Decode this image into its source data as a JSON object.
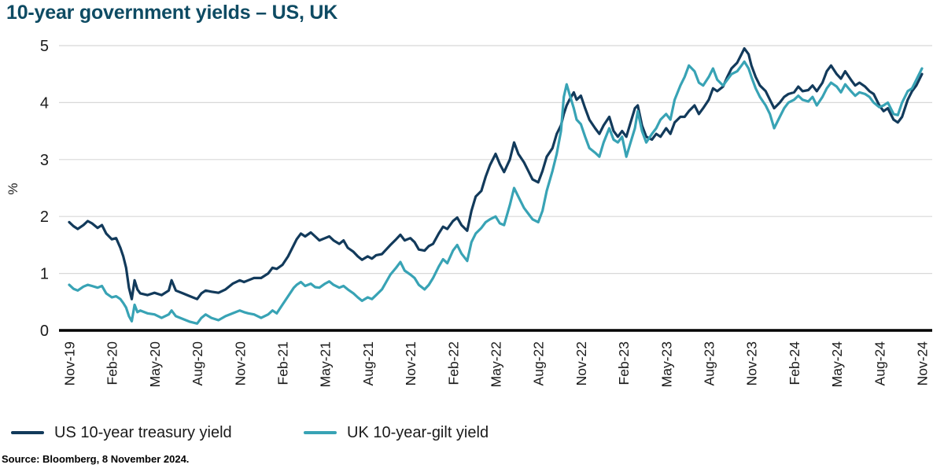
{
  "title": "10-year government yields – US, UK",
  "source": "Source: Bloomberg, 8 November 2024.",
  "colors": {
    "title": "#0E4B63",
    "us_line": "#123A5B",
    "uk_line": "#38A3B5",
    "grid": "#D8D8D8",
    "axis": "#000000",
    "tick_text": "#1A1A1A",
    "background": "#FFFFFF"
  },
  "chart_data": {
    "type": "line",
    "title": "10-year government yields – US, UK",
    "xlabel": "",
    "ylabel": "%",
    "ylim": [
      0,
      5
    ],
    "yticks": [
      0,
      1,
      2,
      3,
      4,
      5
    ],
    "grid": "horizontal",
    "legend_position": "bottom",
    "x_unit": "months since Nov-2019",
    "xtick_months": [
      0,
      3,
      6,
      9,
      12,
      15,
      18,
      21,
      24,
      27,
      30,
      33,
      36,
      39,
      42,
      45,
      48,
      51,
      54,
      57,
      60
    ],
    "xtick_labels": [
      "Nov-19",
      "Feb-20",
      "May-20",
      "Aug-20",
      "Nov-20",
      "Feb-21",
      "May-21",
      "Aug-21",
      "Nov-21",
      "Feb-22",
      "May-22",
      "Aug-22",
      "Nov-22",
      "Feb-23",
      "May-23",
      "Aug-23",
      "Nov-23",
      "Feb-24",
      "May-24",
      "Aug-24",
      "Nov-24"
    ],
    "x": [
      0,
      0.3,
      0.6,
      1,
      1.3,
      1.6,
      2,
      2.3,
      2.6,
      3,
      3.3,
      3.6,
      3.8,
      4,
      4.2,
      4.4,
      4.6,
      4.8,
      5,
      5.5,
      6,
      6.5,
      7,
      7.2,
      7.5,
      8,
      8.5,
      9,
      9.3,
      9.6,
      10,
      10.5,
      11,
      11.5,
      12,
      12.3,
      12.6,
      13,
      13.5,
      14,
      14.3,
      14.6,
      15,
      15.4,
      15.8,
      16,
      16.3,
      16.6,
      17,
      17.3,
      17.6,
      18,
      18.3,
      18.6,
      19,
      19.3,
      19.6,
      20,
      20.3,
      20.6,
      21,
      21.3,
      21.6,
      22,
      22.3,
      22.6,
      23,
      23.3,
      23.6,
      24,
      24.3,
      24.6,
      25,
      25.3,
      25.6,
      26,
      26.3,
      26.6,
      27,
      27.3,
      27.6,
      28,
      28.3,
      28.6,
      29,
      29.3,
      29.6,
      30,
      30.3,
      30.6,
      31,
      31.3,
      31.6,
      32,
      32.3,
      32.6,
      33,
      33.3,
      33.6,
      34,
      34.3,
      34.6,
      34.8,
      35,
      35.2,
      35.5,
      35.7,
      36,
      36.3,
      36.6,
      37,
      37.3,
      37.6,
      38,
      38.3,
      38.6,
      38.9,
      39.2,
      39.5,
      39.8,
      40,
      40.3,
      40.6,
      41,
      41.3,
      41.6,
      42,
      42.3,
      42.6,
      43,
      43.3,
      43.6,
      44,
      44.3,
      44.6,
      45,
      45.3,
      45.6,
      46,
      46.3,
      46.6,
      47,
      47.3,
      47.5,
      47.8,
      48,
      48.3,
      48.6,
      49,
      49.3,
      49.6,
      50,
      50.3,
      50.6,
      51,
      51.3,
      51.6,
      52,
      52.3,
      52.6,
      53,
      53.3,
      53.6,
      54,
      54.3,
      54.6,
      55,
      55.3,
      55.6,
      56,
      56.3,
      56.6,
      57,
      57.3,
      57.6,
      58,
      58.3,
      58.6,
      59,
      59.3,
      59.6,
      60
    ],
    "series": [
      {
        "id": "us",
        "name": "US 10-year treasury yield",
        "color": "#123A5B",
        "values": [
          1.9,
          1.83,
          1.78,
          1.85,
          1.92,
          1.88,
          1.8,
          1.85,
          1.7,
          1.6,
          1.62,
          1.45,
          1.3,
          1.1,
          0.75,
          0.55,
          0.88,
          0.72,
          0.65,
          0.62,
          0.66,
          0.62,
          0.7,
          0.88,
          0.7,
          0.65,
          0.6,
          0.55,
          0.65,
          0.7,
          0.68,
          0.66,
          0.72,
          0.82,
          0.88,
          0.85,
          0.88,
          0.92,
          0.92,
          1,
          1.1,
          1.08,
          1.15,
          1.3,
          1.5,
          1.6,
          1.7,
          1.65,
          1.72,
          1.65,
          1.58,
          1.62,
          1.65,
          1.58,
          1.52,
          1.58,
          1.45,
          1.38,
          1.3,
          1.24,
          1.3,
          1.26,
          1.32,
          1.34,
          1.42,
          1.5,
          1.6,
          1.68,
          1.58,
          1.62,
          1.55,
          1.42,
          1.4,
          1.48,
          1.52,
          1.7,
          1.82,
          1.78,
          1.92,
          1.98,
          1.85,
          1.75,
          2.1,
          2.35,
          2.45,
          2.7,
          2.9,
          3.1,
          2.92,
          2.78,
          3,
          3.3,
          3.1,
          2.95,
          2.8,
          2.65,
          2.6,
          2.8,
          3.05,
          3.2,
          3.45,
          3.6,
          3.8,
          3.95,
          4.05,
          4.18,
          4.05,
          4.12,
          3.9,
          3.7,
          3.55,
          3.45,
          3.6,
          3.75,
          3.5,
          3.4,
          3.5,
          3.4,
          3.65,
          3.9,
          3.95,
          3.6,
          3.4,
          3.35,
          3.45,
          3.4,
          3.55,
          3.45,
          3.65,
          3.75,
          3.75,
          3.85,
          3.95,
          3.8,
          3.9,
          4.05,
          4.25,
          4.2,
          4.28,
          4.45,
          4.6,
          4.7,
          4.85,
          4.95,
          4.85,
          4.65,
          4.45,
          4.3,
          4.2,
          4.05,
          3.9,
          4,
          4.1,
          4.15,
          4.18,
          4.28,
          4.2,
          4.22,
          4.3,
          4.2,
          4.35,
          4.55,
          4.65,
          4.5,
          4.42,
          4.55,
          4.4,
          4.3,
          4.35,
          4.28,
          4.2,
          4.15,
          3.95,
          3.85,
          3.9,
          3.7,
          3.65,
          3.75,
          4.05,
          4.2,
          4.3,
          4.5
        ]
      },
      {
        "id": "uk",
        "name": "UK 10-year-gilt yield",
        "color": "#38A3B5",
        "values": [
          0.8,
          0.73,
          0.7,
          0.77,
          0.8,
          0.78,
          0.75,
          0.78,
          0.65,
          0.58,
          0.6,
          0.55,
          0.48,
          0.4,
          0.25,
          0.16,
          0.45,
          0.32,
          0.35,
          0.3,
          0.28,
          0.22,
          0.28,
          0.35,
          0.25,
          0.2,
          0.15,
          0.12,
          0.22,
          0.28,
          0.22,
          0.18,
          0.25,
          0.3,
          0.35,
          0.32,
          0.3,
          0.28,
          0.22,
          0.28,
          0.35,
          0.3,
          0.45,
          0.6,
          0.75,
          0.8,
          0.85,
          0.78,
          0.82,
          0.76,
          0.75,
          0.82,
          0.86,
          0.8,
          0.75,
          0.78,
          0.72,
          0.65,
          0.58,
          0.52,
          0.58,
          0.55,
          0.62,
          0.72,
          0.85,
          0.98,
          1.1,
          1.2,
          1.05,
          0.98,
          0.92,
          0.8,
          0.72,
          0.8,
          0.92,
          1.12,
          1.25,
          1.18,
          1.4,
          1.5,
          1.35,
          1.22,
          1.55,
          1.7,
          1.8,
          1.9,
          1.95,
          2,
          1.88,
          1.85,
          2.2,
          2.5,
          2.35,
          2.15,
          2.05,
          1.95,
          1.9,
          2.1,
          2.45,
          2.8,
          3.1,
          3.5,
          4.1,
          4.32,
          4.15,
          3.9,
          3.7,
          3.62,
          3.4,
          3.2,
          3.12,
          3.05,
          3.3,
          3.55,
          3.35,
          3.3,
          3.4,
          3.05,
          3.3,
          3.55,
          3.85,
          3.5,
          3.3,
          3.45,
          3.55,
          3.7,
          3.8,
          3.7,
          4.05,
          4.3,
          4.45,
          4.65,
          4.55,
          4.35,
          4.3,
          4.45,
          4.6,
          4.4,
          4.3,
          4.4,
          4.5,
          4.55,
          4.65,
          4.72,
          4.6,
          4.45,
          4.25,
          4.1,
          3.95,
          3.8,
          3.55,
          3.75,
          3.9,
          4,
          4.05,
          4.12,
          4.05,
          4.02,
          4.1,
          3.95,
          4.1,
          4.25,
          4.35,
          4.28,
          4.18,
          4.32,
          4.2,
          4.12,
          4.18,
          4.15,
          4.1,
          4,
          3.92,
          3.95,
          4,
          3.8,
          3.78,
          4,
          4.2,
          4.25,
          4.4,
          4.6
        ]
      }
    ]
  }
}
